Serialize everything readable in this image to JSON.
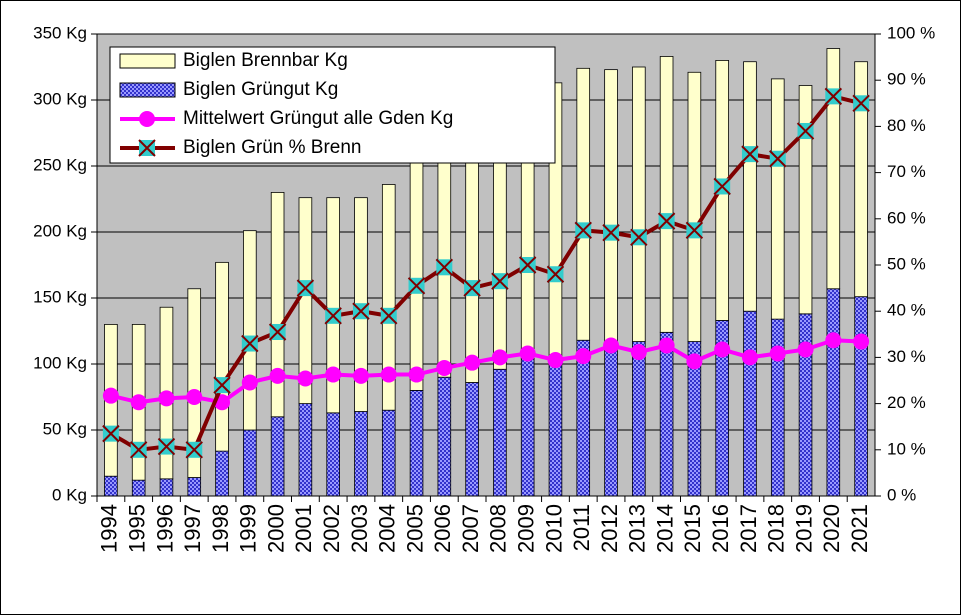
{
  "chart_data": {
    "type": "bar",
    "stacked": true,
    "grid": true,
    "legend": "top-left",
    "categories": [
      "1994",
      "1995",
      "1996",
      "1997",
      "1998",
      "1999",
      "2000",
      "2001",
      "2002",
      "2003",
      "2004",
      "2005",
      "2006",
      "2007",
      "2008",
      "2009",
      "2010",
      "2011",
      "2012",
      "2013",
      "2014",
      "2015",
      "2016",
      "2017",
      "2018",
      "2019",
      "2020",
      "2021"
    ],
    "series": [
      {
        "name": "Biglen Brennbar Kg",
        "type": "bar",
        "color": "#ffffcc",
        "values": [
          115,
          118,
          130,
          143,
          143,
          151,
          170,
          156,
          163,
          162,
          171,
          176,
          182,
          191,
          206,
          208,
          211,
          206,
          206,
          208,
          209,
          204,
          197,
          189,
          182,
          173,
          182,
          178
        ]
      },
      {
        "name": "Biglen Grüngut Kg",
        "type": "bar",
        "color": "#3333cc",
        "pattern": true,
        "values": [
          15,
          12,
          13,
          14,
          34,
          50,
          60,
          70,
          63,
          64,
          65,
          80,
          90,
          86,
          96,
          104,
          102,
          118,
          117,
          117,
          124,
          117,
          133,
          140,
          134,
          138,
          157,
          151
        ]
      },
      {
        "name": "Mittelwert Grüngut alle Gden Kg",
        "type": "line",
        "color": "#ff00ff",
        "marker": "circle",
        "marker_color": "#ff00ff",
        "values": [
          76,
          71,
          74,
          75,
          71,
          86,
          91,
          89,
          92,
          91,
          92,
          92,
          97,
          101,
          105,
          108,
          103,
          106,
          114,
          109,
          114,
          102,
          111,
          105,
          108,
          111,
          118,
          117
        ]
      },
      {
        "name": "Biglen Grün % Brenn",
        "type": "line",
        "color": "#800000",
        "marker": "x-square",
        "marker_color": "#33cccc",
        "axis": "y2",
        "values": [
          13.5,
          10,
          10.7,
          10,
          24,
          33,
          35.5,
          45,
          39,
          40,
          39,
          45.5,
          49.5,
          45,
          46.5,
          50,
          48,
          57.5,
          57,
          56,
          59.5,
          57.5,
          67,
          74,
          73,
          79,
          86.5,
          85
        ]
      }
    ],
    "ylim": [
      0,
      350
    ],
    "yticks": [
      {
        "value": 0,
        "label": "0 Kg"
      },
      {
        "value": 50,
        "label": "50 Kg"
      },
      {
        "value": 100,
        "label": "100 Kg"
      },
      {
        "value": 150,
        "label": "150 Kg"
      },
      {
        "value": 200,
        "label": "200 Kg"
      },
      {
        "value": 250,
        "label": "250 Kg"
      },
      {
        "value": 300,
        "label": "300 Kg"
      },
      {
        "value": 350,
        "label": "350 Kg"
      }
    ],
    "y2lim": [
      0,
      100
    ],
    "y2ticks": [
      {
        "value": 0,
        "label": "0 %"
      },
      {
        "value": 10,
        "label": "10 %"
      },
      {
        "value": 20,
        "label": "20 %"
      },
      {
        "value": 30,
        "label": "30 %"
      },
      {
        "value": 40,
        "label": "40 %"
      },
      {
        "value": 50,
        "label": "50 %"
      },
      {
        "value": 60,
        "label": "60 %"
      },
      {
        "value": 70,
        "label": "70 %"
      },
      {
        "value": 80,
        "label": "80 %"
      },
      {
        "value": 90,
        "label": "90 %"
      },
      {
        "value": 100,
        "label": "100 %"
      }
    ]
  }
}
